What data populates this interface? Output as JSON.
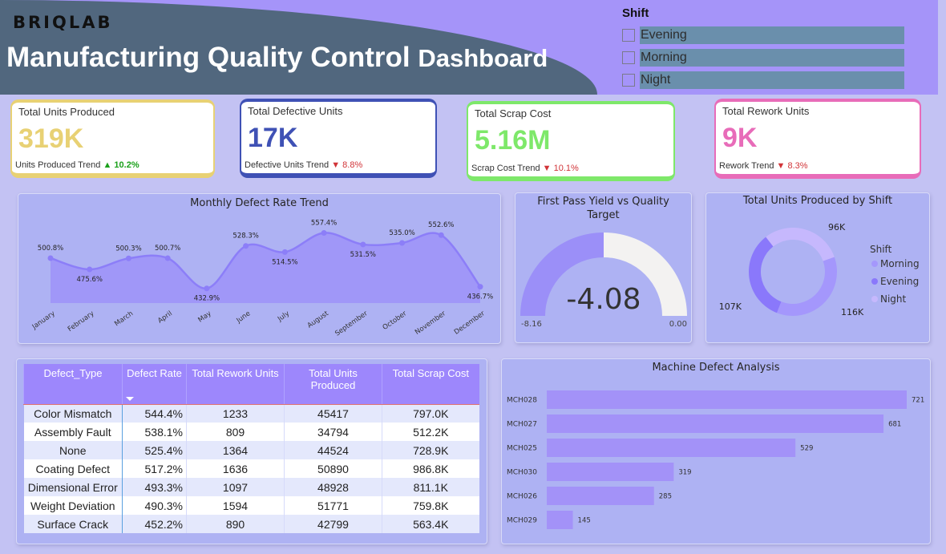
{
  "header": {
    "logo": "BRIQLAB",
    "title_main": "Manufacturing Quality Control",
    "title_suffix": "Dashboard"
  },
  "slicer": {
    "title": "Shift",
    "options": [
      {
        "label": "Evening",
        "checked": false
      },
      {
        "label": "Morning",
        "checked": false
      },
      {
        "label": "Night",
        "checked": false
      }
    ]
  },
  "kpis": [
    {
      "label": "Total Units Produced",
      "value": "319K",
      "trend_label": "Units Produced Trend",
      "trend_dir": "up",
      "trend_symbol": "▲",
      "trend_value": "10.2%",
      "color": "#e8d174"
    },
    {
      "label": "Total Defective Units",
      "value": "17K",
      "trend_label": "Defective Units Trend",
      "trend_dir": "down",
      "trend_symbol": "▼",
      "trend_value": "8.8%",
      "color": "#3f51b5"
    },
    {
      "label": "Total Scrap Cost",
      "value": "5.16M",
      "trend_label": "Scrap Cost Trend",
      "trend_dir": "down",
      "trend_symbol": "▼",
      "trend_value": "10.1%",
      "color": "#7ee86a"
    },
    {
      "label": "Total Rework Units",
      "value": "9K",
      "trend_label": "Rework Trend",
      "trend_dir": "down",
      "trend_symbol": "▼",
      "trend_value": "8.3%",
      "color": "#e86cb9"
    }
  ],
  "chart_data": [
    {
      "type": "area",
      "title": "Monthly Defect Rate Trend",
      "categories": [
        "January",
        "February",
        "March",
        "April",
        "May",
        "June",
        "July",
        "August",
        "September",
        "October",
        "November",
        "December"
      ],
      "values": [
        500.8,
        475.6,
        500.3,
        500.7,
        432.9,
        528.3,
        514.5,
        557.4,
        531.5,
        535.0,
        552.6,
        436.7
      ],
      "labels": [
        "500.8%",
        "475.6%",
        "500.3%",
        "500.7%",
        "432.9%",
        "528.3%",
        "514.5%",
        "557.4%",
        "531.5%",
        "535.0%",
        "552.6%",
        "436.7%"
      ],
      "unit": "%",
      "ylim": [
        400,
        580
      ],
      "grid": false,
      "color": "#9b8ff8"
    },
    {
      "type": "gauge",
      "title": "First Pass Yield vs Quality Target",
      "value": -4.08,
      "value_label": "-4.08",
      "min": -8.16,
      "max": 0.0,
      "min_label": "-8.16",
      "max_label": "0.00",
      "fill_color": "#9b8ff8",
      "track_color": "#f3f2f1"
    },
    {
      "type": "pie",
      "title": "Total Units Produced by Shift",
      "donut": true,
      "legend_title": "Shift",
      "legend_position": "right",
      "slices": [
        {
          "name": "Morning",
          "value": 116,
          "label": "116K",
          "color": "#a497fc"
        },
        {
          "name": "Evening",
          "value": 107,
          "label": "107K",
          "color": "#8a78fb"
        },
        {
          "name": "Night",
          "value": 96,
          "label": "96K",
          "color": "#c6b8fd"
        }
      ]
    },
    {
      "type": "bar",
      "orientation": "horizontal",
      "title": "Machine Defect Analysis",
      "categories": [
        "MCH028",
        "MCH027",
        "MCH025",
        "MCH030",
        "MCH026",
        "MCH029"
      ],
      "values": [
        721,
        681,
        529,
        319,
        285,
        145
      ],
      "xlim": [
        100,
        721
      ],
      "color": "#a392f8"
    },
    {
      "type": "table",
      "columns": [
        "Defect_Type",
        "Defect Rate",
        "Total Rework Units",
        "Total Units Produced",
        "Total Scrap Cost"
      ],
      "sorted_column": "Defect Rate",
      "rows": [
        [
          "Color Mismatch",
          "544.4%",
          "1233",
          "45417",
          "797.0K"
        ],
        [
          "Assembly Fault",
          "538.1%",
          "809",
          "34794",
          "512.2K"
        ],
        [
          "None",
          "525.4%",
          "1364",
          "44524",
          "728.9K"
        ],
        [
          "Coating Defect",
          "517.2%",
          "1636",
          "50890",
          "986.8K"
        ],
        [
          "Dimensional Error",
          "493.3%",
          "1097",
          "48928",
          "811.1K"
        ],
        [
          "Weight Deviation",
          "490.3%",
          "1594",
          "51771",
          "759.8K"
        ],
        [
          "Surface Crack",
          "452.2%",
          "890",
          "42799",
          "563.4K"
        ]
      ]
    }
  ]
}
